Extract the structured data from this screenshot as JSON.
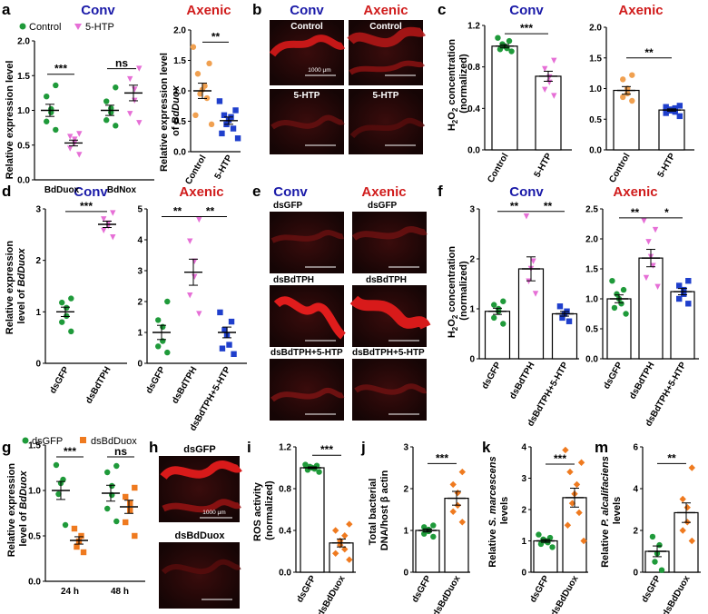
{
  "colors": {
    "conv_title": "#1a1aa8",
    "axenic_title": "#d01c1c",
    "green": "#1f9a3a",
    "pink": "#e66fd6",
    "orange": "#f0a050",
    "blue": "#1f3fcc",
    "dark_orange": "#ef7a1f",
    "micro_bg": "#1a0808",
    "micro_fg": "#c81818"
  },
  "panels": {
    "a": {
      "letter": "a",
      "title": "Conv",
      "legend": [
        "Control",
        "5-HTP"
      ],
      "ylabel": "Relative expression level",
      "yticks": [
        "0.0",
        "0.5",
        "1.0",
        "1.5",
        "2.0"
      ],
      "categories": [
        "BdDuox",
        "BdNox"
      ],
      "sig": [
        "***",
        "ns"
      ]
    },
    "a2": {
      "title": "Axenic",
      "ylabel_1": "Relative expression level",
      "ylabel_2": "of ",
      "ylabel_ital": "BdDuox",
      "yticks": [
        "0.0",
        "0.5",
        "1.0",
        "1.5",
        "2.0"
      ],
      "categories": [
        "Control",
        "5-HTP"
      ],
      "sig": [
        "**"
      ]
    },
    "b": {
      "letter": "b",
      "titles": [
        "Conv",
        "Axenic"
      ],
      "labels": [
        "Control",
        "Control",
        "5-HTP",
        "5-HTP"
      ],
      "scale": "1000 μm"
    },
    "c": {
      "letter": "c",
      "titles": [
        "Conv",
        "Axenic"
      ],
      "ylabel_1": "H",
      "ylabel_2": "O",
      "ylabel_3": " concentration",
      "ylabel_4": "(normalized)",
      "sub": "2",
      "yticks_left": [
        "0.0",
        "0.4",
        "0.8",
        "1.2"
      ],
      "yticks_right": [
        "0.0",
        "0.5",
        "1.0",
        "1.5",
        "2.0"
      ],
      "categories": [
        "Control",
        "5-HTP"
      ],
      "sig": [
        "***",
        "**"
      ]
    },
    "d": {
      "letter": "d",
      "titles": [
        "Conv",
        "Axenic"
      ],
      "ylabel_1": "Relative expression",
      "ylabel_2": "level of ",
      "ylabel_ital": "BdDuox",
      "yticks_left": [
        "0",
        "1",
        "2",
        "3"
      ],
      "yticks_right": [
        "0",
        "1",
        "2",
        "3",
        "4",
        "5"
      ],
      "cat_left": [
        "dsGFP",
        "dsBdTPH"
      ],
      "cat_right": [
        "dsGFP",
        "dsBdTPH",
        "dsBdTPH+5-HTP"
      ],
      "sig": [
        "***",
        "**",
        "**"
      ]
    },
    "e": {
      "letter": "e",
      "titles": [
        "Conv",
        "Axenic"
      ],
      "labels": [
        "dsGFP",
        "dsGFP",
        "dsBdTPH",
        "dsBdTPH",
        "dsBdTPH+5-HTP",
        "dsBdTPH+5-HTP"
      ]
    },
    "f": {
      "letter": "f",
      "titles": [
        "Conv",
        "Axenic"
      ],
      "ylabel_1": "H",
      "ylabel_2": "O",
      "ylabel_3": " concentration",
      "ylabel_4": "(normalized)",
      "sub": "2",
      "yticks_left": [
        "0",
        "1",
        "2",
        "3"
      ],
      "yticks_right": [
        "0.0",
        "0.5",
        "1.0",
        "1.5",
        "2.0",
        "2.5"
      ],
      "categories": [
        "dsGFP",
        "dsBdTPH",
        "dsBdTPH+5-HTP"
      ],
      "sig": [
        "**",
        "**",
        "**",
        "*"
      ]
    },
    "g": {
      "letter": "g",
      "legend": [
        "dsGFP",
        "dsBdDuox"
      ],
      "ylabel_1": "Relative expression",
      "ylabel_2": "level of ",
      "ylabel_ital": "BdDuox",
      "yticks": [
        "0.0",
        "0.5",
        "1.0",
        "1.5"
      ],
      "categories": [
        "24 h",
        "48 h"
      ],
      "sig": [
        "***",
        "ns"
      ]
    },
    "h": {
      "letter": "h",
      "labels": [
        "dsGFP",
        "dsBdDuox"
      ],
      "scale": "1000 μm"
    },
    "i": {
      "letter": "i",
      "ylabel_1": "ROS activity",
      "ylabel_2": "(normalized)",
      "yticks": [
        "0.0",
        "0.4",
        "0.8",
        "1.2"
      ],
      "categories": [
        "dsGFP",
        "dsBdDuox"
      ],
      "sig": [
        "***"
      ]
    },
    "j": {
      "letter": "j",
      "ylabel_1": "Total bacterial",
      "ylabel_2": "DNA/host β actin",
      "yticks": [
        "0",
        "1",
        "2",
        "3"
      ],
      "categories": [
        "dsGFP",
        "dsBdDuox"
      ],
      "sig": [
        "***"
      ]
    },
    "k": {
      "letter": "k",
      "ylabel_1": "Relative ",
      "ylabel_ital": "S. marcescens",
      "ylabel_2": "levels",
      "yticks": [
        "0",
        "1",
        "2",
        "3",
        "4"
      ],
      "categories": [
        "dsGFP",
        "dsBdDuox"
      ],
      "sig": [
        "***"
      ]
    },
    "m": {
      "letter": "m",
      "ylabel_1": "Relative ",
      "ylabel_ital": "P. alcalifaciens",
      "ylabel_2": "levels",
      "yticks": [
        "0",
        "2",
        "4",
        "6"
      ],
      "categories": [
        "dsGFP",
        "dsBdDuox"
      ],
      "sig": [
        "**"
      ]
    }
  },
  "chart_data": [
    {
      "panel": "a",
      "type": "scatter",
      "categories": [
        "BdDuox",
        "BdNox"
      ],
      "series": [
        {
          "name": "Control",
          "means": [
            1.0,
            1.0
          ],
          "points": [
            [
              0.72,
              0.84,
              0.97,
              1.02,
              1.2,
              1.36
            ],
            [
              0.78,
              0.86,
              0.97,
              1.03,
              1.13,
              1.33
            ]
          ]
        },
        {
          "name": "5-HTP",
          "means": [
            0.53,
            1.25
          ],
          "points": [
            [
              0.36,
              0.45,
              0.53,
              0.58,
              0.62,
              0.66
            ],
            [
              0.82,
              0.95,
              1.14,
              1.3,
              1.45,
              1.6
            ]
          ]
        }
      ],
      "ylim": [
        0,
        2
      ]
    },
    {
      "panel": "a2",
      "type": "scatter",
      "categories": [
        "Control",
        "5-HTP"
      ],
      "series": [
        {
          "name": "Control",
          "means": [
            1.0
          ],
          "points": [
            [
              0.45,
              0.6,
              0.88,
              0.95,
              1.02,
              1.08,
              1.28,
              1.45,
              1.72
            ]
          ]
        },
        {
          "name": "5-HTP",
          "means": [
            0.51
          ],
          "points": [
            [
              0.22,
              0.3,
              0.38,
              0.45,
              0.52,
              0.57,
              0.6,
              0.68,
              0.83
            ]
          ]
        }
      ],
      "ylim": [
        0,
        2
      ]
    },
    {
      "panel": "c-conv",
      "type": "bar",
      "categories": [
        "Control",
        "5-HTP"
      ],
      "values": [
        1.0,
        0.71
      ],
      "points": [
        [
          0.95,
          0.97,
          0.98,
          1.0,
          1.02,
          1.05,
          1.08
        ],
        [
          0.52,
          0.58,
          0.65,
          0.7,
          0.78,
          0.86
        ]
      ],
      "ylim": [
        0,
        1.2
      ]
    },
    {
      "panel": "c-axenic",
      "type": "bar",
      "categories": [
        "Control",
        "5-HTP"
      ],
      "values": [
        0.97,
        0.65
      ],
      "points": [
        [
          0.8,
          0.86,
          0.92,
          1.0,
          1.15,
          1.22
        ],
        [
          0.55,
          0.6,
          0.62,
          0.64,
          0.66,
          0.68,
          0.7,
          0.72
        ]
      ],
      "ylim": [
        0,
        2
      ]
    },
    {
      "panel": "d-conv",
      "type": "scatter",
      "categories": [
        "dsGFP",
        "dsBdTPH"
      ],
      "means": [
        1.0,
        2.7
      ],
      "points": [
        [
          0.62,
          0.8,
          0.92,
          1.08,
          1.18,
          1.26
        ],
        [
          2.45,
          2.58,
          2.66,
          2.72,
          2.8,
          2.92
        ]
      ],
      "ylim": [
        0,
        3
      ]
    },
    {
      "panel": "d-axenic",
      "type": "scatter",
      "categories": [
        "dsGFP",
        "dsBdTPH",
        "dsBdTPH+5-HTP"
      ],
      "means": [
        1.0,
        2.95,
        1.0
      ],
      "points": [
        [
          0.35,
          0.55,
          0.72,
          1.18,
          1.4,
          2.0
        ],
        [
          1.6,
          2.2,
          2.8,
          3.3,
          3.95,
          4.65
        ],
        [
          0.3,
          0.48,
          0.6,
          0.92,
          1.08,
          1.35,
          1.65
        ]
      ],
      "ylim": [
        0,
        5
      ]
    },
    {
      "panel": "f-conv",
      "type": "bar",
      "categories": [
        "dsGFP",
        "dsBdTPH",
        "dsBdTPH+5-HTP"
      ],
      "values": [
        0.95,
        1.8,
        0.9
      ],
      "points": [
        [
          0.7,
          0.82,
          0.95,
          1.0,
          1.08,
          1.15
        ],
        [
          1.3,
          1.55,
          1.8,
          1.95,
          2.85
        ],
        [
          0.75,
          0.82,
          0.9,
          0.95,
          1.05
        ]
      ],
      "ylim": [
        0,
        3
      ]
    },
    {
      "panel": "f-axenic",
      "type": "bar",
      "categories": [
        "dsGFP",
        "dsBdTPH",
        "dsBdTPH+5-HTP"
      ],
      "values": [
        1.0,
        1.68,
        1.12
      ],
      "points": [
        [
          0.75,
          0.85,
          0.92,
          1.0,
          1.08,
          1.15,
          1.3
        ],
        [
          1.2,
          1.35,
          1.55,
          1.7,
          1.95,
          2.15,
          2.3
        ],
        [
          0.92,
          1.0,
          1.08,
          1.15,
          1.22,
          1.3
        ]
      ],
      "ylim": [
        0,
        2.5
      ]
    },
    {
      "panel": "g",
      "type": "scatter",
      "categories": [
        "24 h",
        "48 h"
      ],
      "series": [
        {
          "name": "dsGFP",
          "means": [
            1.0,
            0.97
          ],
          "points": [
            [
              0.62,
              0.96,
              1.08,
              1.12,
              1.28
            ],
            [
              0.66,
              0.8,
              0.95,
              1.05,
              1.2,
              1.27
            ]
          ]
        },
        {
          "name": "dsBdDuox",
          "means": [
            0.45,
            0.82
          ],
          "points": [
            [
              0.32,
              0.38,
              0.44,
              0.5,
              0.58
            ],
            [
              0.5,
              0.65,
              0.78,
              0.86,
              0.93,
              1.03
            ]
          ]
        }
      ],
      "ylim": [
        0,
        1.5
      ]
    },
    {
      "panel": "i",
      "type": "bar",
      "categories": [
        "dsGFP",
        "dsBdDuox"
      ],
      "values": [
        1.0,
        0.28
      ],
      "points": [
        [
          0.96,
          0.98,
          0.99,
          1.0,
          1.01,
          1.02,
          1.03
        ],
        [
          0.12,
          0.18,
          0.22,
          0.26,
          0.3,
          0.35,
          0.4,
          0.46
        ]
      ],
      "ylim": [
        0,
        1.2
      ]
    },
    {
      "panel": "j",
      "type": "bar",
      "categories": [
        "dsGFP",
        "dsBdDuox"
      ],
      "values": [
        1.0,
        1.77
      ],
      "points": [
        [
          0.85,
          0.92,
          0.98,
          1.02,
          1.08,
          1.12
        ],
        [
          1.2,
          1.45,
          1.6,
          1.9,
          2.1,
          2.4
        ]
      ],
      "ylim": [
        0,
        3
      ]
    },
    {
      "panel": "k",
      "type": "bar",
      "categories": [
        "dsGFP",
        "dsBdDuox"
      ],
      "values": [
        1.0,
        2.38
      ],
      "points": [
        [
          0.8,
          0.9,
          0.95,
          1.0,
          1.05,
          1.1,
          1.2
        ],
        [
          1.0,
          1.5,
          1.9,
          2.2,
          2.5,
          2.8,
          3.2,
          3.5,
          3.9
        ]
      ],
      "ylim": [
        0,
        4
      ]
    },
    {
      "panel": "m",
      "type": "bar",
      "categories": [
        "dsGFP",
        "dsBdDuox"
      ],
      "values": [
        1.0,
        2.85
      ],
      "points": [
        [
          0.1,
          0.5,
          0.9,
          1.3,
          1.7
        ],
        [
          1.5,
          2.0,
          2.4,
          3.1,
          3.5,
          5.0
        ]
      ],
      "ylim": [
        0,
        6
      ]
    }
  ]
}
